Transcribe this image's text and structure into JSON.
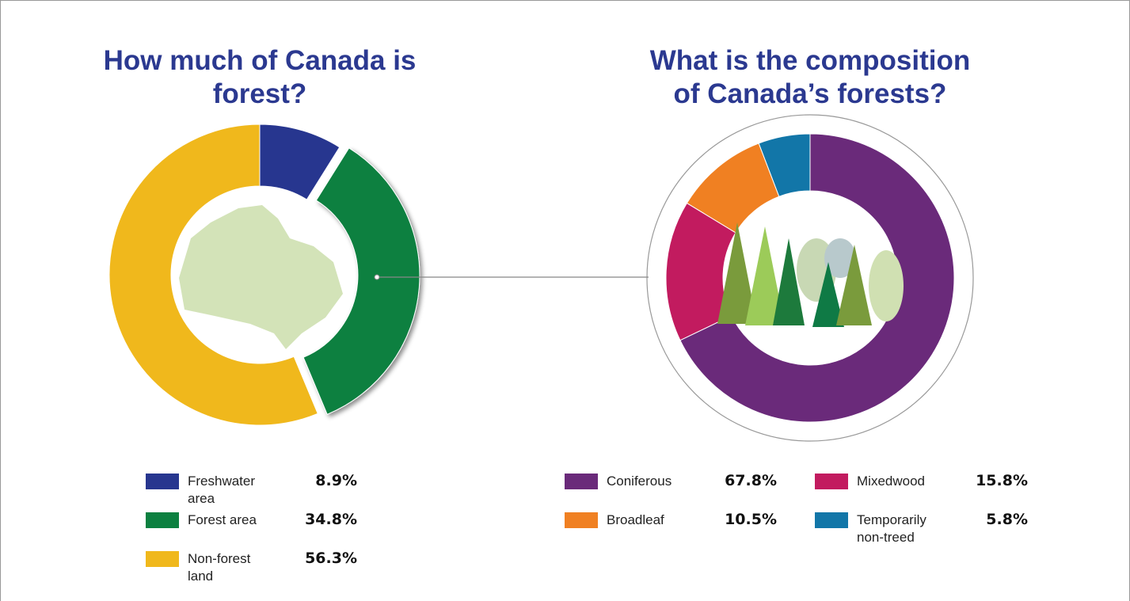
{
  "chart_data": [
    {
      "type": "donut",
      "title": "How much of Canada is forest?",
      "categories": [
        "Freshwater area",
        "Forest area",
        "Non-forest land"
      ],
      "values": [
        8.9,
        34.8,
        56.3
      ],
      "value_labels": [
        "8.9%",
        "34.8%",
        "56.3%"
      ],
      "colors": [
        "#27368f",
        "#0c8040",
        "#f0b81c"
      ]
    },
    {
      "type": "donut",
      "title": "What is the composition of Canada’s forests?",
      "categories": [
        "Coniferous",
        "Mixedwood",
        "Broadleaf",
        "Temporarily non-treed"
      ],
      "values": [
        67.8,
        15.8,
        10.5,
        5.8
      ],
      "value_labels": [
        "67.8%",
        "15.8%",
        "10.5%",
        "5.8%"
      ],
      "colors": [
        "#6a2a7a",
        "#c21b5f",
        "#f08022",
        "#1276a8"
      ]
    }
  ]
}
